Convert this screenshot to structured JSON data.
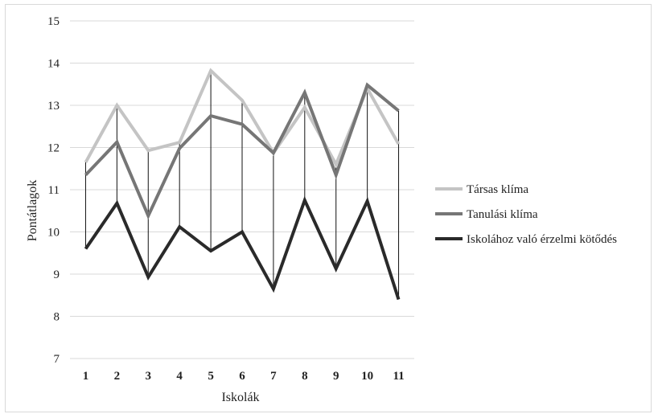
{
  "chart_data": {
    "type": "line",
    "title": "",
    "xlabel": "Iskolák",
    "ylabel": "Pontátlagok",
    "ylim": [
      7,
      15
    ],
    "yticks": [
      7,
      8,
      9,
      10,
      11,
      12,
      13,
      14,
      15
    ],
    "categories": [
      "1",
      "2",
      "3",
      "4",
      "5",
      "6",
      "7",
      "8",
      "9",
      "10",
      "11"
    ],
    "grid": true,
    "drop_lines": true,
    "legend_position": "right",
    "series": [
      {
        "name": "Társas klíma",
        "color": "#c4c4c4",
        "values": [
          11.65,
          13.0,
          11.93,
          12.12,
          13.82,
          13.12,
          11.87,
          12.95,
          11.6,
          13.4,
          12.08
        ]
      },
      {
        "name": "Tanulási klíma",
        "color": "#767676",
        "values": [
          11.35,
          12.13,
          10.38,
          11.98,
          12.75,
          12.55,
          11.87,
          13.3,
          11.35,
          13.48,
          12.87
        ]
      },
      {
        "name": "Iskolához való érzelmi kötődés",
        "color": "#2a2a2a",
        "values": [
          9.6,
          10.68,
          8.93,
          10.12,
          9.55,
          10.0,
          8.65,
          10.75,
          9.13,
          10.73,
          8.4
        ]
      }
    ]
  }
}
